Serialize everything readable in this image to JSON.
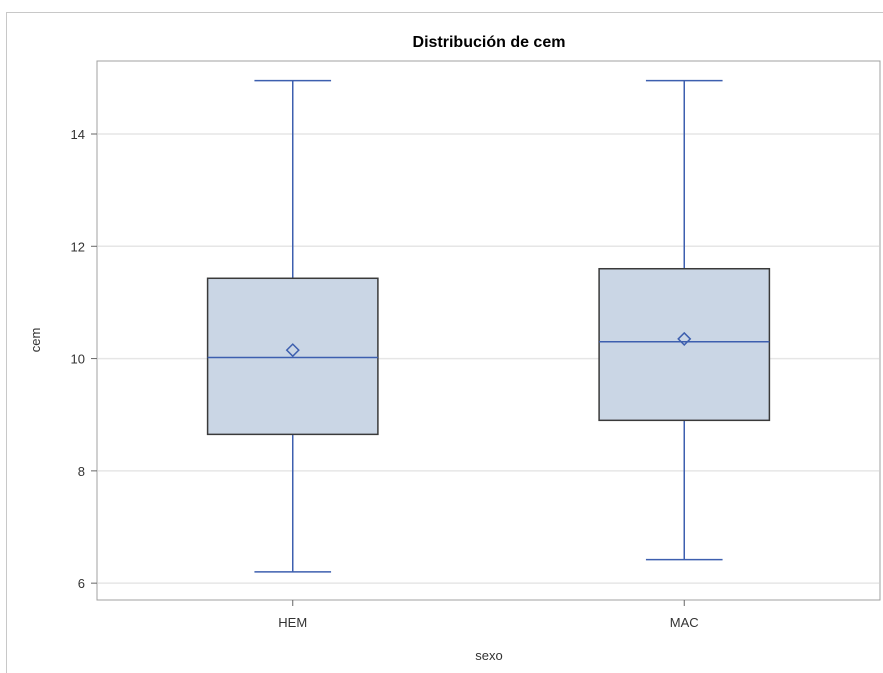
{
  "chart_data": {
    "type": "boxplot",
    "title": "Distribución de cem",
    "xlabel": "sexo",
    "ylabel": "cem",
    "categories": [
      "HEM",
      "MAC"
    ],
    "boxes": [
      {
        "category": "HEM",
        "min": 6.2,
        "q1": 8.65,
        "median": 10.02,
        "mean": 10.15,
        "q3": 11.43,
        "max": 14.95
      },
      {
        "category": "MAC",
        "min": 6.42,
        "q1": 8.9,
        "median": 10.3,
        "mean": 10.35,
        "q3": 11.6,
        "max": 14.95
      }
    ],
    "ylim": [
      5.7,
      15.3
    ],
    "yticks": [
      6,
      8,
      10,
      12,
      14
    ],
    "grid": true,
    "colors": {
      "box_fill": "#cad6e5",
      "box_edge": "#3a3a3a",
      "whisker": "#3d5faf",
      "median": "#3d5faf",
      "mean_marker": "#3d5faf",
      "grid": "#e6e6e6"
    }
  }
}
